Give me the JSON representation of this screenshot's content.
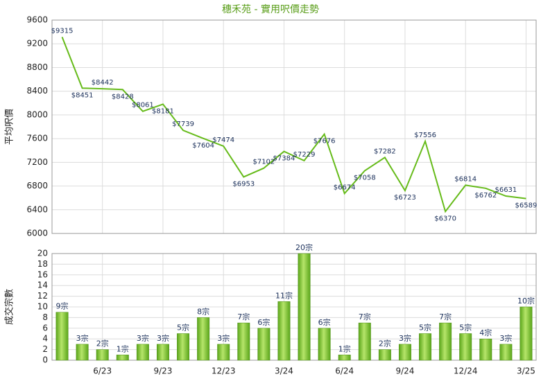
{
  "chart_data": [
    {
      "type": "line",
      "title": "穗禾苑 - 實用呎價走勢",
      "y_label": "平均呎價",
      "color": "#66bb1a",
      "values": [
        9315,
        8451,
        8442,
        8428,
        8061,
        8181,
        7739,
        7604,
        7474,
        6953,
        7102,
        7384,
        7229,
        7676,
        6674,
        7058,
        7282,
        6723,
        7556,
        6370,
        6814,
        6762,
        6631,
        6589
      ],
      "value_labels": [
        "$9315",
        "$8451",
        "$8442",
        "$8428",
        "$8061",
        "$8181",
        "$7739",
        "$7604",
        "$7474",
        "$6953",
        "$7102",
        "$7384",
        "$7229",
        "$7676",
        "$6674",
        "$7058",
        "$7282",
        "$6723",
        "$7556",
        "$6370",
        "$6814",
        "$6762",
        "$6631",
        "$6589"
      ],
      "ylim": [
        6000,
        9600
      ],
      "yticks": [
        6000,
        6400,
        6800,
        7200,
        7600,
        8000,
        8400,
        8800,
        9200,
        9600
      ],
      "grid": true
    },
    {
      "type": "bar",
      "y_label": "成交宗數",
      "color": "#7cc42a",
      "categories": [
        null,
        null,
        "6/23",
        null,
        null,
        "9/23",
        null,
        null,
        "12/23",
        null,
        null,
        "3/24",
        null,
        null,
        "6/24",
        null,
        null,
        "9/24",
        null,
        null,
        "12/24",
        null,
        null,
        "3/25"
      ],
      "values": [
        9,
        3,
        2,
        1,
        3,
        3,
        5,
        8,
        3,
        7,
        6,
        11,
        20,
        6,
        1,
        7,
        2,
        3,
        5,
        7,
        5,
        4,
        3,
        10
      ],
      "value_labels": [
        "9宗",
        "3宗",
        "2宗",
        "1宗",
        "3宗",
        "3宗",
        "5宗",
        "8宗",
        "3宗",
        "7宗",
        "6宗",
        "11宗",
        "20宗",
        "6宗",
        "1宗",
        "7宗",
        "2宗",
        "3宗",
        "5宗",
        "7宗",
        "5宗",
        "4宗",
        "3宗",
        "10宗"
      ],
      "ylim": [
        0,
        20
      ],
      "yticks": [
        0,
        2,
        4,
        6,
        8,
        10,
        12,
        14,
        16,
        18,
        20
      ],
      "grid": true
    }
  ]
}
